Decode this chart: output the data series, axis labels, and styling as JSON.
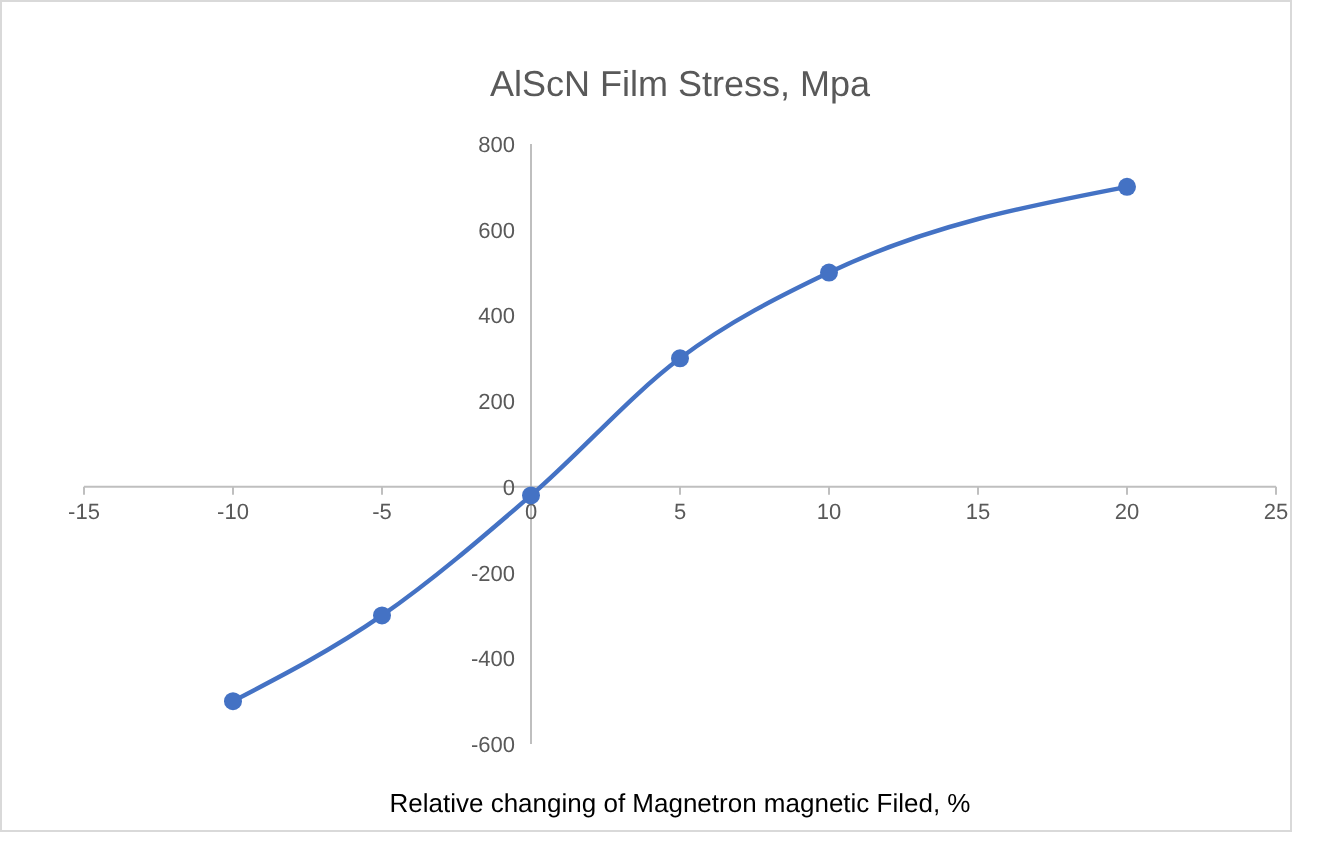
{
  "chart_data": {
    "type": "line",
    "title": "AlScN Film Stress, Mpa",
    "xlabel": "Relative changing of Magnetron magnetic Filed, %",
    "x": [
      -10,
      -5,
      0,
      5,
      10,
      20
    ],
    "series": [
      {
        "color": "#4472c4",
        "values": [
          -500,
          -300,
          -20,
          300,
          500,
          700
        ]
      }
    ],
    "xlim": [
      -15,
      25
    ],
    "xticks": [
      -15,
      -10,
      -5,
      0,
      5,
      10,
      15,
      20,
      25
    ],
    "ylim": [
      -600,
      800
    ],
    "yticks": [
      -600,
      -400,
      -200,
      0,
      200,
      400,
      600,
      800
    ],
    "marker": "circle",
    "line_style": "solid",
    "grid": false
  }
}
